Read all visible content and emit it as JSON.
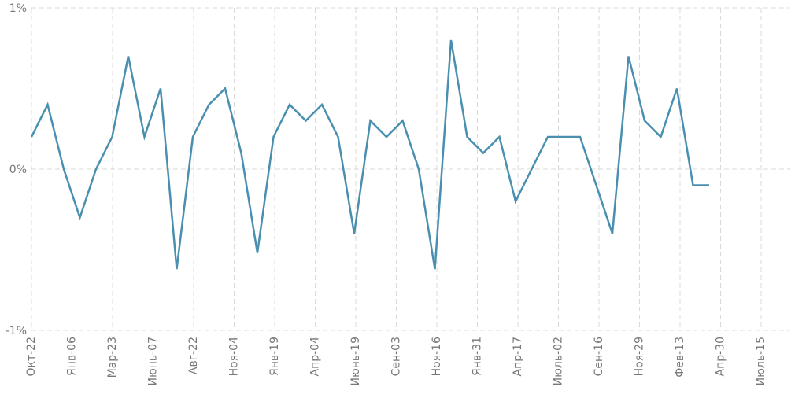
{
  "chart_data": {
    "type": "line",
    "title": "",
    "xlabel": "",
    "ylabel": "",
    "ylim": [
      -1,
      1
    ],
    "yticks": [
      1,
      0,
      -1
    ],
    "ytick_labels": [
      "1%",
      "0%",
      "-1%"
    ],
    "grid": true,
    "color": "#4a8fb0",
    "x_tick_labels": [
      "Окт-22",
      "Янв-06",
      "Мар-23",
      "Июнь-07",
      "Авг-22",
      "Ноя-04",
      "Янв-19",
      "Апр-04",
      "Июнь-19",
      "Сен-03",
      "Ноя-16",
      "Янв-31",
      "Апр-17",
      "Июль-02",
      "Сен-16",
      "Ноя-29",
      "Фев-13",
      "Апр-30",
      "Июль-15"
    ],
    "series": [
      {
        "values": [
          0.2,
          0.4,
          0.0,
          -0.3,
          0.0,
          0.2,
          0.7,
          0.2,
          0.5,
          -0.62,
          0.2,
          0.4,
          0.5,
          0.1,
          -0.52,
          0.2,
          0.4,
          0.3,
          0.4,
          0.2,
          -0.4,
          0.3,
          0.2,
          0.3,
          0.0,
          -0.62,
          0.8,
          0.2,
          0.1,
          0.2,
          -0.2,
          0.0,
          0.2,
          0.2,
          0.2,
          -0.1,
          -0.4,
          0.7,
          0.3,
          0.2,
          0.5,
          -0.1,
          -0.1
        ]
      }
    ]
  }
}
